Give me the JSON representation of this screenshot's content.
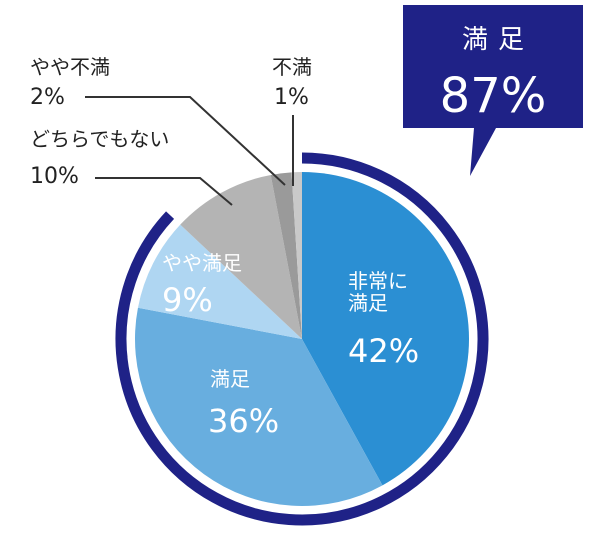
{
  "chart_data": {
    "type": "pie",
    "categories": [
      "非常に満足",
      "満足",
      "やや満足",
      "どちらでもない",
      "やや不満",
      "不満"
    ],
    "values": [
      42,
      36,
      9,
      10,
      2,
      1
    ],
    "value_labels": [
      "42%",
      "36%",
      "9%",
      "10%",
      "2%",
      "1%"
    ],
    "colors": [
      "#2b8fd3",
      "#68aedf",
      "#afd6f2",
      "#b4b4b4",
      "#9a9a9a",
      "#c9c9c9"
    ],
    "summary": {
      "label": "満足",
      "value": 87,
      "value_label": "87%",
      "color": "#1f2287"
    }
  }
}
